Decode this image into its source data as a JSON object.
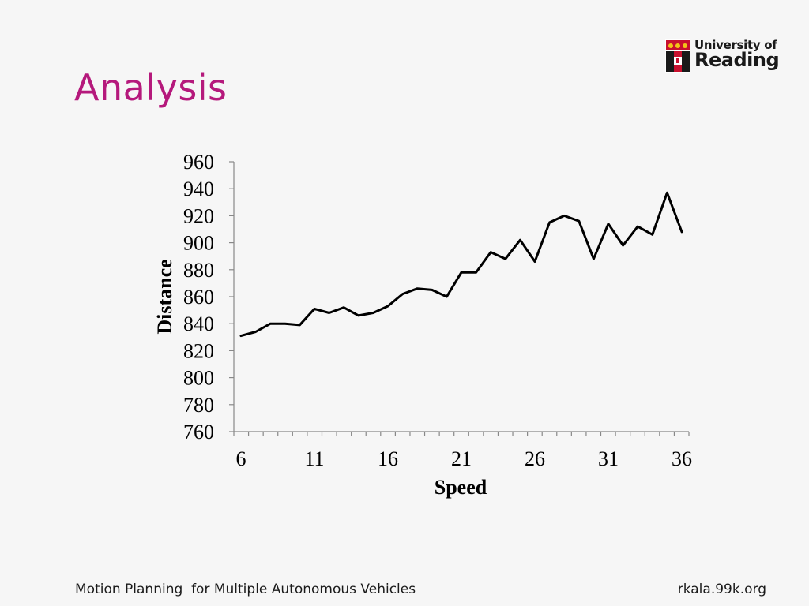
{
  "slide": {
    "title": "Analysis",
    "footer_left": "Motion Planning  for Multiple Autonomous Vehicles",
    "footer_right": "rkala.99k.org",
    "title_color": "#b5197c"
  },
  "logo": {
    "line1": "University of",
    "line2": "Reading",
    "crest_colors": [
      "#c8102e",
      "#f2c318",
      "#1a1a1a"
    ]
  },
  "chart_data": {
    "type": "line",
    "xlabel": "Speed",
    "ylabel": "Distance",
    "xlim": [
      6,
      36
    ],
    "ylim": [
      760,
      960
    ],
    "x_ticks": [
      6,
      11,
      16,
      21,
      26,
      31,
      36
    ],
    "y_ticks": [
      760,
      780,
      800,
      820,
      840,
      860,
      880,
      900,
      920,
      940,
      960
    ],
    "grid": false,
    "legend": "none",
    "line_color": "#000000",
    "series": [
      {
        "x": [
          6,
          7,
          8,
          9,
          10,
          11,
          12,
          13,
          14,
          15,
          16,
          17,
          18,
          19,
          20,
          21,
          22,
          23,
          24,
          25,
          26,
          27,
          28,
          29,
          30,
          31,
          32,
          33,
          34,
          35,
          36
        ],
        "y": [
          831,
          834,
          840,
          840,
          839,
          851,
          848,
          852,
          846,
          848,
          853,
          862,
          866,
          865,
          860,
          878,
          878,
          893,
          888,
          902,
          886,
          915,
          920,
          916,
          888,
          914,
          898,
          912,
          906,
          937,
          908
        ]
      }
    ]
  }
}
